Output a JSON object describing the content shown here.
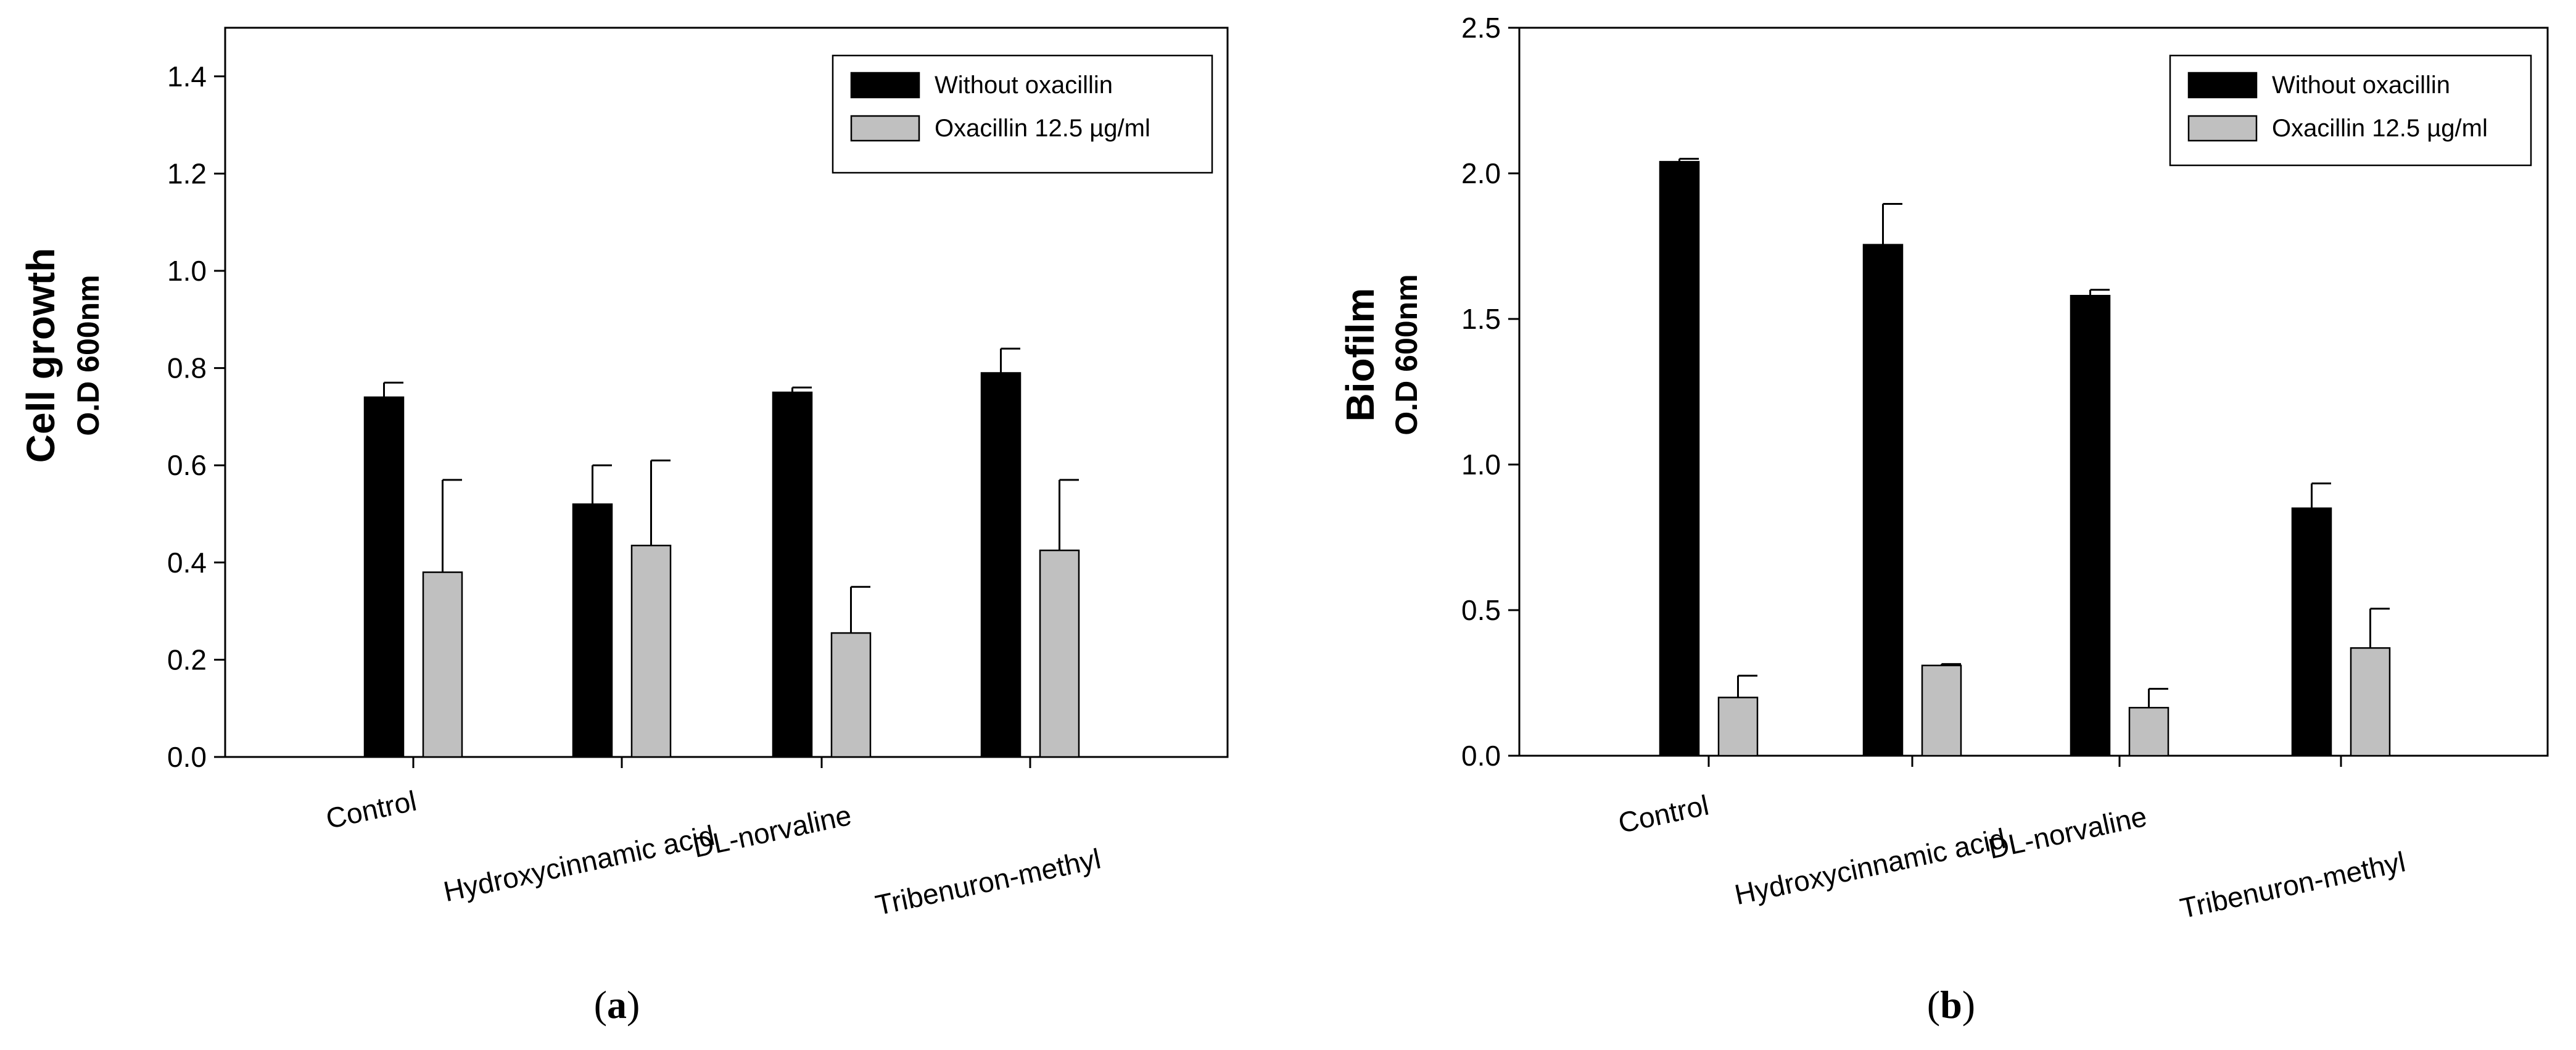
{
  "chart_data": [
    {
      "type": "bar",
      "panel_label": "a",
      "categories": [
        "Control",
        "Hydroxycinnamic acid",
        "DL-norvaline",
        "Tribenuron-methyl"
      ],
      "series": [
        {
          "name": "Without oxacillin",
          "color": "#000000",
          "values": [
            0.74,
            0.52,
            0.75,
            0.79
          ],
          "errors": [
            0.03,
            0.08,
            0.01,
            0.05
          ]
        },
        {
          "name": "Oxacillin 12.5 µg/ml",
          "color": "#c0c0c0",
          "values": [
            0.38,
            0.435,
            0.255,
            0.425
          ],
          "errors": [
            0.19,
            0.175,
            0.095,
            0.145
          ]
        }
      ],
      "ylabel": "Cell growth",
      "ylabel_sub": "O.D 600nm",
      "xlabel": "",
      "ylim": [
        0,
        1.5
      ],
      "yticks": [
        "0.0",
        "0.2",
        "0.4",
        "0.6",
        "0.8",
        "1.0",
        "1.2",
        "1.4"
      ],
      "ytick_values": [
        0,
        0.2,
        0.4,
        0.6,
        0.8,
        1.0,
        1.2,
        1.4
      ],
      "legend_position": "top-right"
    },
    {
      "type": "bar",
      "panel_label": "b",
      "categories": [
        "Control",
        "Hydroxycinnamic acid",
        "DL-norvaline",
        "Tribenuron-methyl"
      ],
      "series": [
        {
          "name": "Without oxacillin",
          "color": "#000000",
          "values": [
            2.04,
            1.755,
            1.58,
            0.85
          ],
          "errors": [
            0.01,
            0.14,
            0.02,
            0.085
          ]
        },
        {
          "name": "Oxacillin 12.5 µg/ml",
          "color": "#c0c0c0",
          "values": [
            0.2,
            0.31,
            0.165,
            0.37
          ],
          "errors": [
            0.075,
            0.005,
            0.065,
            0.135
          ]
        }
      ],
      "ylabel": "Biofilm",
      "ylabel_sub": "O.D 600nm",
      "xlabel": "",
      "ylim": [
        0,
        2.5
      ],
      "yticks": [
        "0.0",
        "0.5",
        "1.0",
        "1.5",
        "2.0",
        "2.5"
      ],
      "ytick_values": [
        0,
        0.5,
        1.0,
        1.5,
        2.0,
        2.5
      ],
      "legend_position": "top-right"
    }
  ]
}
